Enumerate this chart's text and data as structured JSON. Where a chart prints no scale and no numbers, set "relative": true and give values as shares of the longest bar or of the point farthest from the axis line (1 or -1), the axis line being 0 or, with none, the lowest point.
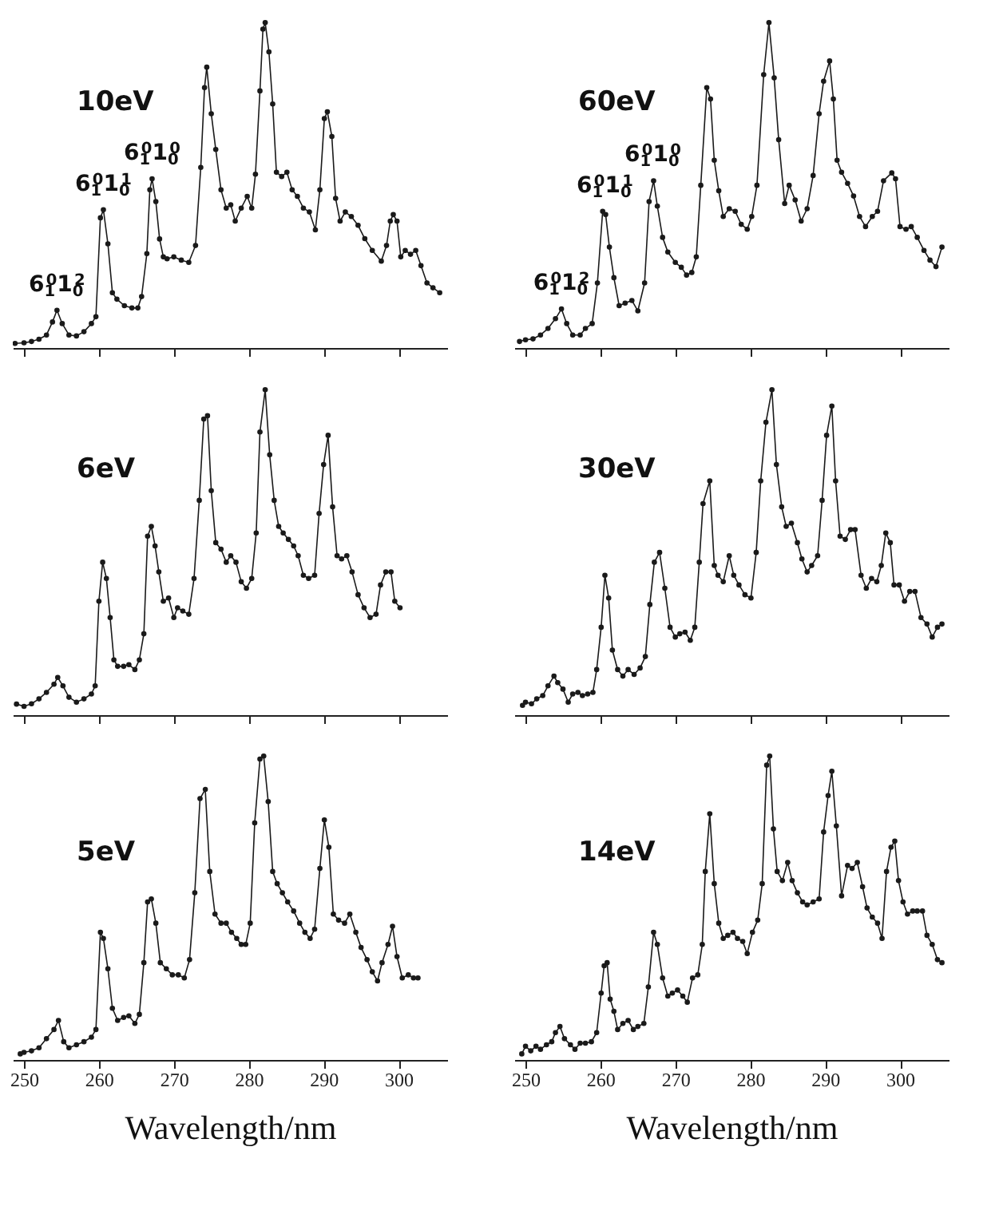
{
  "chart_data": [
    {
      "type": "line",
      "title": "10eV",
      "relative": true,
      "marker": "circle",
      "line_style": "solid",
      "tick_labels": false,
      "xlim": [
        248.5,
        306.5
      ],
      "xticks": [
        250,
        260,
        270,
        280,
        290,
        300
      ],
      "annotations": [
        {
          "text": "6$_{1}$$^{0}$1$_{0}$$^{2}$",
          "x": 254.4,
          "y": 0.116
        },
        {
          "text": "6$_{1}$$^{0}$1$_{0}$$^{1}$",
          "x": 260.6,
          "y": 0.425
        },
        {
          "text": "6$_{1}$$^{0}$1$_{0}$$^{0}$",
          "x": 267.1,
          "y": 0.52
        }
      ],
      "series": [
        {
          "color": "#1a1a1a",
          "x": [
            248.8,
            250,
            251,
            252,
            253,
            253.8,
            254.4,
            255.1,
            256,
            257,
            258,
            259,
            259.6,
            260.2,
            260.6,
            261.2,
            261.8,
            262.4,
            263.4,
            264.4,
            265.2,
            265.7,
            266.4,
            266.8,
            267.1,
            267.6,
            268.1,
            268.6,
            269.1,
            270,
            271,
            272,
            272.9,
            273.6,
            274.1,
            274.4,
            275,
            275.6,
            276.3,
            277,
            277.6,
            278.2,
            279,
            279.8,
            280.4,
            280.9,
            281.5,
            281.9,
            282.2,
            282.7,
            283.2,
            283.7,
            284.4,
            285.1,
            285.8,
            286.5,
            287.3,
            288.1,
            288.9,
            289.5,
            290.1,
            290.5,
            291.1,
            291.6,
            292.2,
            292.9,
            293.7,
            294.6,
            295.5,
            296.5,
            297.7,
            298.4,
            298.9,
            299.3,
            299.8,
            300.3,
            300.9,
            301.6,
            302.3,
            303,
            303.8,
            304.6,
            305.5
          ],
          "values": [
            0.014,
            0.016,
            0.02,
            0.027,
            0.04,
            0.08,
            0.116,
            0.075,
            0.04,
            0.037,
            0.05,
            0.075,
            0.096,
            0.4,
            0.425,
            0.32,
            0.17,
            0.15,
            0.13,
            0.123,
            0.123,
            0.158,
            0.29,
            0.486,
            0.52,
            0.45,
            0.335,
            0.28,
            0.274,
            0.28,
            0.27,
            0.263,
            0.315,
            0.555,
            0.8,
            0.863,
            0.72,
            0.61,
            0.486,
            0.43,
            0.44,
            0.39,
            0.43,
            0.466,
            0.43,
            0.534,
            0.79,
            0.98,
            1.0,
            0.91,
            0.75,
            0.54,
            0.527,
            0.54,
            0.486,
            0.466,
            0.43,
            0.418,
            0.363,
            0.486,
            0.705,
            0.726,
            0.65,
            0.46,
            0.39,
            0.418,
            0.404,
            0.377,
            0.336,
            0.3,
            0.267,
            0.315,
            0.39,
            0.41,
            0.39,
            0.28,
            0.3,
            0.288,
            0.3,
            0.253,
            0.2,
            0.185,
            0.17
          ]
        }
      ]
    },
    {
      "type": "line",
      "title": "60eV",
      "relative": true,
      "marker": "circle",
      "line_style": "solid",
      "tick_labels": false,
      "xlim": [
        248.5,
        306.5
      ],
      "xticks": [
        250,
        260,
        270,
        280,
        290,
        300
      ],
      "annotations": [
        {
          "text": "6$_{1}$$^{0}$1$_{0}$$^{2}$",
          "x": 254.8,
          "y": 0.12
        },
        {
          "text": "6$_{1}$$^{0}$1$_{0}$$^{1}$",
          "x": 260.6,
          "y": 0.42
        },
        {
          "text": "6$_{1}$$^{0}$1$_{0}$$^{0}$",
          "x": 267.0,
          "y": 0.514
        }
      ],
      "series": [
        {
          "color": "#1a1a1a",
          "x": [
            249.2,
            250,
            251,
            252,
            253,
            254,
            254.8,
            255.5,
            256.3,
            257.3,
            258,
            258.9,
            259.6,
            260.3,
            260.7,
            261.2,
            261.8,
            262.5,
            263.3,
            264.2,
            265,
            265.9,
            266.5,
            267.1,
            267.6,
            268.3,
            269,
            270,
            270.8,
            271.5,
            272.2,
            272.8,
            273.4,
            274.2,
            274.7,
            275.2,
            275.8,
            276.4,
            277.2,
            278,
            278.8,
            279.6,
            280.2,
            280.9,
            281.8,
            282.5,
            283.2,
            283.8,
            284.6,
            285.2,
            286,
            286.8,
            287.6,
            288.4,
            289.2,
            289.8,
            290.6,
            291.1,
            291.6,
            292.2,
            293,
            293.8,
            294.6,
            295.4,
            296.3,
            297,
            297.8,
            298.9,
            299.4,
            300,
            300.8,
            301.5,
            302.3,
            303.2,
            304,
            304.8,
            305.6
          ],
          "values": [
            0.02,
            0.025,
            0.028,
            0.04,
            0.06,
            0.09,
            0.12,
            0.075,
            0.04,
            0.04,
            0.06,
            0.075,
            0.2,
            0.42,
            0.41,
            0.31,
            0.216,
            0.13,
            0.138,
            0.146,
            0.114,
            0.2,
            0.45,
            0.514,
            0.436,
            0.34,
            0.295,
            0.263,
            0.248,
            0.224,
            0.232,
            0.28,
            0.5,
            0.8,
            0.765,
            0.577,
            0.483,
            0.404,
            0.428,
            0.42,
            0.38,
            0.365,
            0.404,
            0.5,
            0.84,
            1.0,
            0.83,
            0.64,
            0.444,
            0.5,
            0.455,
            0.39,
            0.428,
            0.53,
            0.72,
            0.82,
            0.882,
            0.765,
            0.577,
            0.54,
            0.506,
            0.467,
            0.404,
            0.373,
            0.404,
            0.42,
            0.514,
            0.538,
            0.52,
            0.373,
            0.365,
            0.373,
            0.34,
            0.3,
            0.27,
            0.25,
            0.31
          ]
        }
      ]
    },
    {
      "type": "line",
      "title": "6eV",
      "relative": true,
      "marker": "circle",
      "line_style": "solid",
      "tick_labels": false,
      "xlim": [
        248.5,
        306.5
      ],
      "xticks": [
        250,
        260,
        270,
        280,
        290,
        300
      ],
      "series": [
        {
          "color": "#1a1a1a",
          "x": [
            249,
            250,
            251,
            252,
            253,
            254,
            254.5,
            255.2,
            256,
            257,
            258,
            259,
            259.5,
            260,
            260.5,
            261,
            261.5,
            262,
            262.5,
            263.3,
            264,
            264.8,
            265.4,
            266,
            266.5,
            267,
            267.5,
            268,
            268.6,
            269.3,
            270,
            270.5,
            271.2,
            272,
            272.7,
            273.4,
            274,
            274.5,
            275,
            275.6,
            276.3,
            277,
            277.6,
            278.3,
            279,
            279.7,
            280.4,
            281,
            281.5,
            282.2,
            282.8,
            283.4,
            284,
            284.6,
            285.3,
            286,
            286.6,
            287.3,
            288,
            288.8,
            289.4,
            290,
            290.6,
            291.2,
            291.8,
            292.4,
            293.1,
            293.8,
            294.6,
            295.4,
            296.2,
            297,
            297.6,
            298.3,
            299,
            299.5,
            300.2
          ],
          "values": [
            0.034,
            0.027,
            0.035,
            0.05,
            0.07,
            0.095,
            0.116,
            0.09,
            0.055,
            0.04,
            0.05,
            0.065,
            0.09,
            0.35,
            0.47,
            0.42,
            0.3,
            0.17,
            0.15,
            0.15,
            0.155,
            0.14,
            0.17,
            0.25,
            0.55,
            0.58,
            0.52,
            0.44,
            0.35,
            0.36,
            0.3,
            0.33,
            0.32,
            0.31,
            0.42,
            0.66,
            0.91,
            0.92,
            0.69,
            0.53,
            0.51,
            0.47,
            0.49,
            0.47,
            0.41,
            0.39,
            0.42,
            0.56,
            0.87,
            1.0,
            0.8,
            0.66,
            0.58,
            0.56,
            0.54,
            0.52,
            0.49,
            0.43,
            0.42,
            0.43,
            0.62,
            0.77,
            0.86,
            0.64,
            0.49,
            0.48,
            0.49,
            0.44,
            0.37,
            0.33,
            0.3,
            0.31,
            0.4,
            0.44,
            0.44,
            0.35,
            0.33
          ]
        }
      ]
    },
    {
      "type": "line",
      "title": "30eV",
      "relative": true,
      "marker": "circle",
      "line_style": "solid",
      "tick_labels": false,
      "xlim": [
        248.5,
        306.5
      ],
      "xticks": [
        250,
        260,
        270,
        280,
        290,
        300
      ],
      "series": [
        {
          "color": "#1a1a1a",
          "x": [
            249.6,
            250,
            250.8,
            251.5,
            252.3,
            253,
            253.8,
            254.3,
            255,
            255.7,
            256.3,
            257,
            257.6,
            258.3,
            259,
            259.5,
            260.1,
            260.6,
            261.1,
            261.6,
            262.3,
            263,
            263.7,
            264.5,
            265.3,
            266,
            266.6,
            267.2,
            267.9,
            268.6,
            269.3,
            270,
            270.6,
            271.3,
            272,
            272.6,
            273.2,
            273.7,
            274.6,
            275.2,
            275.7,
            276.4,
            277.2,
            277.8,
            278.5,
            279.3,
            280.1,
            280.8,
            281.4,
            282.1,
            282.9,
            283.5,
            284.2,
            284.8,
            285.5,
            286.3,
            286.9,
            287.6,
            288.2,
            289,
            289.6,
            290.2,
            290.9,
            291.4,
            292,
            292.7,
            293.4,
            294,
            294.8,
            295.5,
            296.2,
            296.9,
            297.5,
            298.1,
            298.7,
            299.2,
            299.9,
            300.6,
            301.3,
            302,
            302.8,
            303.6,
            304.3,
            305,
            305.6
          ],
          "values": [
            0.03,
            0.04,
            0.035,
            0.05,
            0.06,
            0.09,
            0.12,
            0.1,
            0.08,
            0.04,
            0.065,
            0.07,
            0.06,
            0.065,
            0.07,
            0.14,
            0.27,
            0.43,
            0.36,
            0.2,
            0.14,
            0.12,
            0.14,
            0.125,
            0.145,
            0.18,
            0.34,
            0.47,
            0.5,
            0.39,
            0.27,
            0.24,
            0.25,
            0.255,
            0.23,
            0.27,
            0.47,
            0.65,
            0.72,
            0.46,
            0.43,
            0.41,
            0.49,
            0.43,
            0.4,
            0.37,
            0.36,
            0.5,
            0.72,
            0.9,
            1.0,
            0.77,
            0.64,
            0.58,
            0.59,
            0.53,
            0.48,
            0.44,
            0.46,
            0.49,
            0.66,
            0.86,
            0.95,
            0.72,
            0.55,
            0.54,
            0.57,
            0.57,
            0.43,
            0.39,
            0.42,
            0.41,
            0.46,
            0.56,
            0.53,
            0.4,
            0.4,
            0.35,
            0.38,
            0.38,
            0.3,
            0.28,
            0.24,
            0.27,
            0.28
          ]
        }
      ]
    },
    {
      "type": "line",
      "title": "5eV",
      "relative": true,
      "marker": "circle",
      "line_style": "solid",
      "tick_labels": "x",
      "xlabel": "Wavelength/nm",
      "xlim": [
        248.5,
        306.5
      ],
      "xticks": [
        250,
        260,
        270,
        280,
        290,
        300
      ],
      "series": [
        {
          "color": "#1a1a1a",
          "x": [
            249.5,
            250,
            251,
            252,
            253,
            254,
            254.6,
            255.3,
            256,
            257,
            258,
            259,
            259.6,
            260.2,
            260.6,
            261.2,
            261.8,
            262.5,
            263.3,
            264,
            264.8,
            265.4,
            266,
            266.5,
            267,
            267.6,
            268.2,
            269,
            269.8,
            270.6,
            271.4,
            272.1,
            272.8,
            273.5,
            274.2,
            274.8,
            275.5,
            276.3,
            277,
            277.7,
            278.4,
            279,
            279.6,
            280.2,
            280.8,
            281.5,
            282,
            282.6,
            283.2,
            283.8,
            284.5,
            285.2,
            286,
            286.8,
            287.5,
            288.2,
            288.8,
            289.5,
            290.1,
            290.7,
            291.3,
            292,
            292.8,
            293.5,
            294.3,
            295,
            295.8,
            296.5,
            297.2,
            297.8,
            298.6,
            299.2,
            299.8,
            300.5,
            301.3,
            302,
            302.6
          ],
          "values": [
            0.02,
            0.025,
            0.03,
            0.04,
            0.07,
            0.1,
            0.13,
            0.06,
            0.04,
            0.05,
            0.06,
            0.075,
            0.1,
            0.42,
            0.4,
            0.3,
            0.17,
            0.13,
            0.14,
            0.145,
            0.12,
            0.15,
            0.32,
            0.52,
            0.53,
            0.45,
            0.32,
            0.3,
            0.28,
            0.28,
            0.27,
            0.33,
            0.55,
            0.86,
            0.89,
            0.62,
            0.48,
            0.45,
            0.45,
            0.42,
            0.4,
            0.38,
            0.38,
            0.45,
            0.78,
            0.99,
            1.0,
            0.85,
            0.62,
            0.58,
            0.55,
            0.52,
            0.49,
            0.45,
            0.42,
            0.4,
            0.43,
            0.63,
            0.79,
            0.7,
            0.48,
            0.46,
            0.45,
            0.48,
            0.42,
            0.37,
            0.33,
            0.29,
            0.26,
            0.32,
            0.38,
            0.44,
            0.34,
            0.27,
            0.28,
            0.27,
            0.27
          ]
        }
      ]
    },
    {
      "type": "line",
      "title": "14eV",
      "relative": true,
      "marker": "circle",
      "line_style": "solid",
      "tick_labels": "x",
      "xlabel": "Wavelength/nm",
      "xlim": [
        248.5,
        306.5
      ],
      "xticks": [
        250,
        260,
        270,
        280,
        290,
        300
      ],
      "series": [
        {
          "color": "#1a1a1a",
          "x": [
            249.5,
            250,
            250.7,
            251.4,
            252,
            252.8,
            253.5,
            254,
            254.6,
            255.2,
            256,
            256.6,
            257.3,
            258,
            258.8,
            259.5,
            260.1,
            260.5,
            260.9,
            261.3,
            261.8,
            262.3,
            263,
            263.7,
            264.4,
            265,
            265.8,
            266.4,
            267.1,
            267.6,
            268.3,
            269,
            269.6,
            270.3,
            271,
            271.6,
            272.3,
            273,
            273.6,
            274,
            274.6,
            275.2,
            275.8,
            276.4,
            277,
            277.7,
            278.3,
            279,
            279.6,
            280.3,
            281,
            281.6,
            282.2,
            282.6,
            283.1,
            283.6,
            284.3,
            285,
            285.6,
            286.3,
            287,
            287.6,
            288.4,
            289.2,
            289.8,
            290.4,
            290.9,
            291.5,
            292.2,
            293,
            293.6,
            294.3,
            295,
            295.6,
            296.3,
            297,
            297.6,
            298.2,
            298.8,
            299.3,
            299.8,
            300.4,
            301,
            301.7,
            302.3,
            303,
            303.6,
            304.3,
            305,
            305.6
          ],
          "values": [
            0.02,
            0.045,
            0.03,
            0.045,
            0.035,
            0.05,
            0.06,
            0.09,
            0.11,
            0.07,
            0.05,
            0.035,
            0.055,
            0.055,
            0.06,
            0.09,
            0.22,
            0.31,
            0.32,
            0.2,
            0.16,
            0.1,
            0.12,
            0.13,
            0.1,
            0.11,
            0.12,
            0.24,
            0.42,
            0.38,
            0.27,
            0.21,
            0.22,
            0.23,
            0.21,
            0.19,
            0.27,
            0.28,
            0.38,
            0.62,
            0.81,
            0.58,
            0.45,
            0.4,
            0.41,
            0.42,
            0.4,
            0.39,
            0.35,
            0.42,
            0.46,
            0.58,
            0.97,
            1.0,
            0.76,
            0.62,
            0.59,
            0.65,
            0.59,
            0.55,
            0.52,
            0.51,
            0.52,
            0.53,
            0.75,
            0.87,
            0.95,
            0.77,
            0.54,
            0.64,
            0.63,
            0.65,
            0.57,
            0.5,
            0.47,
            0.45,
            0.4,
            0.62,
            0.7,
            0.72,
            0.59,
            0.52,
            0.48,
            0.49,
            0.49,
            0.49,
            0.41,
            0.38,
            0.33,
            0.32
          ]
        }
      ]
    }
  ]
}
